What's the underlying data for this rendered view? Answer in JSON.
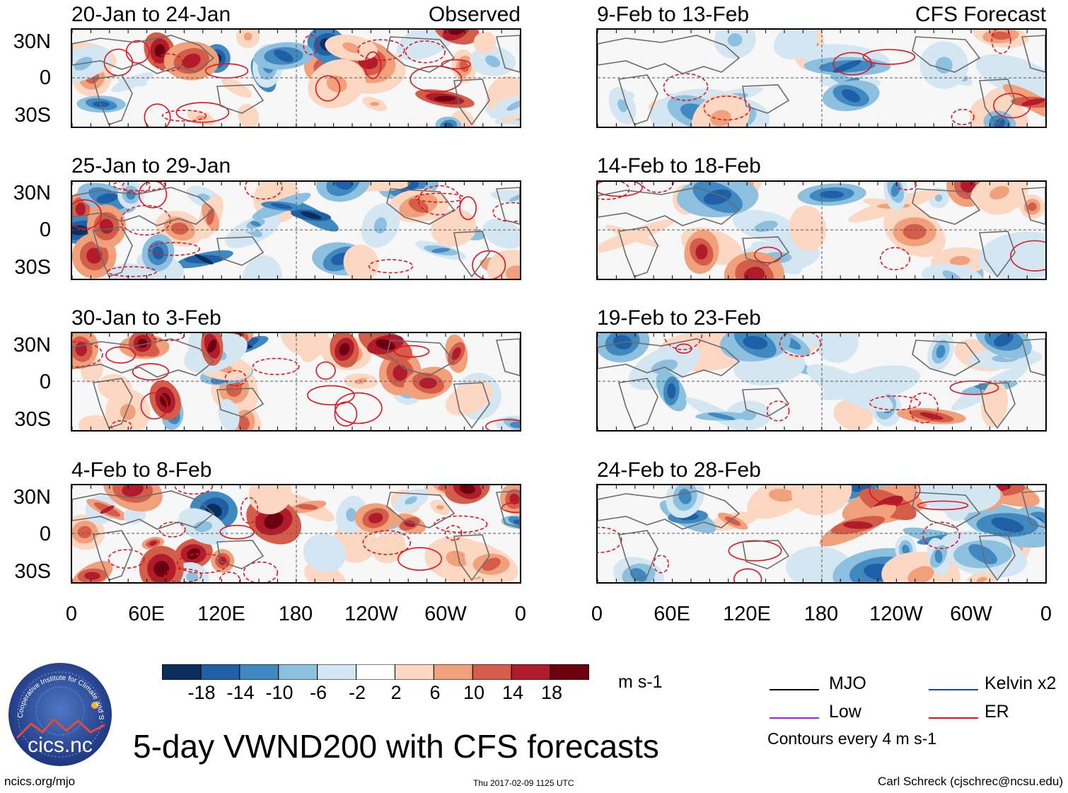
{
  "panels": {
    "observed_tag": "Observed",
    "forecast_tag": "CFS Forecast",
    "left": [
      {
        "title": "20-Jan to 24-Jan"
      },
      {
        "title": "25-Jan to 29-Jan"
      },
      {
        "title": "30-Jan to 3-Feb"
      },
      {
        "title": "4-Feb to 8-Feb"
      }
    ],
    "right": [
      {
        "title": "9-Feb to 13-Feb"
      },
      {
        "title": "14-Feb to 18-Feb"
      },
      {
        "title": "19-Feb to 23-Feb"
      },
      {
        "title": "24-Feb to 28-Feb"
      }
    ]
  },
  "axes": {
    "lat_labels": [
      "30N",
      "0",
      "30S"
    ],
    "lon_labels": [
      "0",
      "60E",
      "120E",
      "180",
      "120W",
      "60W",
      "0"
    ]
  },
  "colorbar": {
    "labels": [
      "-18",
      "-14",
      "-10",
      "-6",
      "-2",
      "2",
      "6",
      "10",
      "14",
      "18"
    ],
    "units": "m s-1",
    "colors": [
      "#0b2e5e",
      "#1f5fa6",
      "#3f88c0",
      "#8dbfdf",
      "#d3e6f2",
      "#ffffff",
      "#fcd7c2",
      "#f0a07a",
      "#d45d4a",
      "#b01c2c",
      "#6c0011"
    ]
  },
  "legend": {
    "mjo": "MJO",
    "low": "Low",
    "kelvin": "Kelvin x2",
    "er": "ER",
    "contours_note": "Contours every 4 m s-1",
    "colors": {
      "mjo": "#000000",
      "low": "#a020f0",
      "kelvin": "#1f3fbf",
      "er": "#e0141e"
    }
  },
  "logo": {
    "text": "cics.nc",
    "ring_text": "Cooperative Institute for Climate and Satellites"
  },
  "main_title": "5-day VWND200 with CFS forecasts",
  "footer": {
    "left": "ncics.org/mjo",
    "center": "Thu 2017-02-09 1125 UTC",
    "right": "Carl Schreck (cjschrec@ncsu.edu)"
  }
}
